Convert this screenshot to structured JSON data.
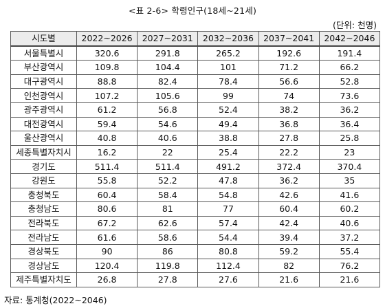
{
  "caption": "<표 2-6> 학령인구(18세~21세)",
  "unit": "(단위: 천명)",
  "table": {
    "headers": [
      "시도별",
      "2022~2026",
      "2027~2031",
      "2032~2036",
      "2037~2041",
      "2042~2046"
    ],
    "rows": [
      [
        "서울특별시",
        "320.6",
        "291.8",
        "265.2",
        "192.6",
        "191.4"
      ],
      [
        "부산광역시",
        "109.8",
        "104.4",
        "101",
        "71.2",
        "66.2"
      ],
      [
        "대구광역시",
        "88.8",
        "82.4",
        "78.4",
        "56.6",
        "52.8"
      ],
      [
        "인천광역시",
        "107.2",
        "105.6",
        "99",
        "74",
        "73.6"
      ],
      [
        "광주광역시",
        "61.2",
        "56.8",
        "52.4",
        "38.2",
        "36.2"
      ],
      [
        "대전광역시",
        "59.4",
        "54.6",
        "49.4",
        "36.8",
        "36.4"
      ],
      [
        "울산광역시",
        "40.8",
        "40.6",
        "38.8",
        "27.8",
        "25.8"
      ],
      [
        "세종특별자치시",
        "16.2",
        "22",
        "25.4",
        "22.2",
        "23"
      ],
      [
        "경기도",
        "511.4",
        "511.4",
        "491.2",
        "372.4",
        "370.4"
      ],
      [
        "강원도",
        "55.8",
        "52.2",
        "47.8",
        "36.2",
        "35"
      ],
      [
        "충청북도",
        "60.4",
        "58.4",
        "54.8",
        "42.6",
        "41.6"
      ],
      [
        "충청남도",
        "80.6",
        "81",
        "77",
        "60.4",
        "60.2"
      ],
      [
        "전라북도",
        "67.2",
        "62.6",
        "57.4",
        "42.4",
        "40.6"
      ],
      [
        "전라남도",
        "61.6",
        "58.6",
        "54.4",
        "39.4",
        "37.2"
      ],
      [
        "경상북도",
        "90",
        "86",
        "80.8",
        "59.2",
        "55.4"
      ],
      [
        "경상남도",
        "120.4",
        "119.8",
        "112.4",
        "82",
        "76.2"
      ],
      [
        "제주특별자치도",
        "26.8",
        "27.8",
        "27.6",
        "21.6",
        "21.6"
      ]
    ]
  },
  "source": "자료: 통계청(2022~2046)"
}
